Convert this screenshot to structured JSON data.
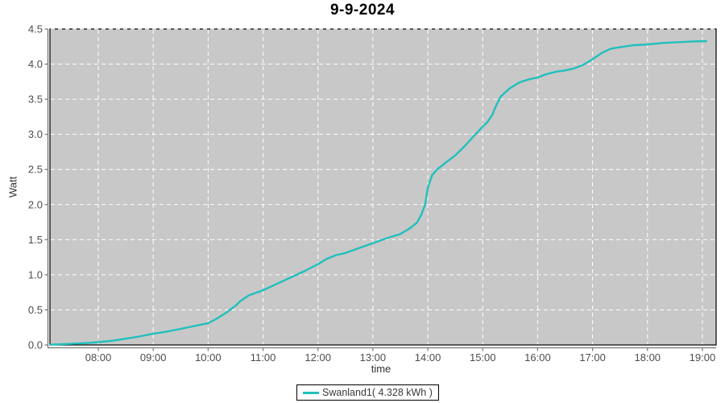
{
  "title": "9-9-2024",
  "axes": {
    "x_label": "time",
    "y_label": "Watt"
  },
  "legend": {
    "series_label": "Swanland1( 4.328 kWh )"
  },
  "colors": {
    "series": "#20C0BC",
    "plot_bg": "#C8C8C8",
    "plot_border": "#000000",
    "grid": "#FFFFFF",
    "axis_line": "#777777",
    "tick_label": "#4d4d4d",
    "title_text": "#000000"
  },
  "chart_data": {
    "type": "line",
    "title": "9-9-2024",
    "xlabel": "time",
    "ylabel": "Watt",
    "grid": true,
    "legend_position": "bottom",
    "xlim_hours": [
      7.12,
      19.25
    ],
    "ylim": [
      0,
      4.5
    ],
    "y_ticks": [
      0.0,
      0.5,
      1.0,
      1.5,
      2.0,
      2.5,
      3.0,
      3.5,
      4.0,
      4.5
    ],
    "x_tick_hours": [
      8,
      9,
      10,
      11,
      12,
      13,
      14,
      15,
      16,
      17,
      18,
      19
    ],
    "x_tick_labels": [
      "08:00",
      "09:00",
      "10:00",
      "11:00",
      "12:00",
      "13:00",
      "14:00",
      "15:00",
      "16:00",
      "17:00",
      "18:00",
      "19:00"
    ],
    "series": [
      {
        "name": "Swanland1( 4.328 kWh )",
        "total_kwh": 4.328,
        "x_hours": [
          7.13,
          7.33,
          7.58,
          7.83,
          8.0,
          8.25,
          8.5,
          8.75,
          9.0,
          9.25,
          9.5,
          9.75,
          10.0,
          10.17,
          10.33,
          10.5,
          10.58,
          10.67,
          10.75,
          11.0,
          11.25,
          11.5,
          11.75,
          12.0,
          12.17,
          12.33,
          12.5,
          12.75,
          13.0,
          13.25,
          13.5,
          13.67,
          13.8,
          13.88,
          13.95,
          14.0,
          14.08,
          14.17,
          14.33,
          14.5,
          14.67,
          14.83,
          15.0,
          15.08,
          15.17,
          15.25,
          15.33,
          15.5,
          15.67,
          15.83,
          16.0,
          16.17,
          16.33,
          16.5,
          16.67,
          16.83,
          17.0,
          17.17,
          17.33,
          17.5,
          17.75,
          18.0,
          18.25,
          18.5,
          18.75,
          19.0,
          19.07
        ],
        "y_kwh": [
          0.005,
          0.01,
          0.02,
          0.03,
          0.04,
          0.06,
          0.09,
          0.12,
          0.16,
          0.19,
          0.23,
          0.27,
          0.31,
          0.38,
          0.46,
          0.56,
          0.62,
          0.67,
          0.71,
          0.78,
          0.87,
          0.96,
          1.05,
          1.15,
          1.23,
          1.28,
          1.31,
          1.38,
          1.45,
          1.52,
          1.58,
          1.66,
          1.74,
          1.85,
          2.0,
          2.24,
          2.42,
          2.5,
          2.6,
          2.7,
          2.83,
          2.97,
          3.11,
          3.17,
          3.27,
          3.42,
          3.54,
          3.66,
          3.74,
          3.78,
          3.81,
          3.86,
          3.89,
          3.91,
          3.94,
          3.99,
          4.07,
          4.16,
          4.22,
          4.24,
          4.27,
          4.28,
          4.3,
          4.31,
          4.32,
          4.328,
          4.328
        ]
      }
    ]
  }
}
